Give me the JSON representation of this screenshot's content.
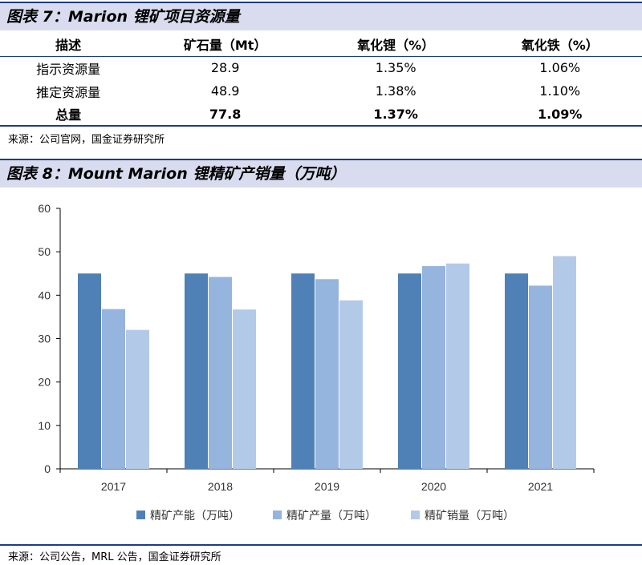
{
  "table7": {
    "title": "图表 7：Marion 锂矿项目资源量",
    "headers": [
      "描述",
      "矿石量（Mt）",
      "氧化锂（%）",
      "氧化铁（%）"
    ],
    "rows": [
      [
        "指示资源量",
        "28.9",
        "1.35%",
        "1.06%"
      ],
      [
        "推定资源量",
        "48.9",
        "1.38%",
        "1.10%"
      ],
      [
        "总量",
        "77.8",
        "1.37%",
        "1.09%"
      ]
    ],
    "source": "来源：公司官网，国金证券研究所"
  },
  "chart8": {
    "title": "图表 8：Mount Marion 锂精矿产销量（万吨）",
    "source": "来源：公司公告，MRL 公告，国金证券研究所"
  },
  "chart_data": {
    "type": "bar",
    "title": "图表 8：Mount Marion 锂精矿产销量（万吨）",
    "categories": [
      "2017",
      "2018",
      "2019",
      "2020",
      "2021"
    ],
    "series": [
      {
        "name": "精矿产能（万吨）",
        "values": [
          45,
          45,
          45,
          45,
          45
        ],
        "color": "#4f81b7"
      },
      {
        "name": "精矿产量（万吨）",
        "values": [
          36.8,
          44.2,
          43.7,
          46.7,
          42.2
        ],
        "color": "#95b4de"
      },
      {
        "name": "精矿销量（万吨）",
        "values": [
          32,
          36.7,
          38.8,
          47.3,
          49.0
        ],
        "color": "#b3c9e8"
      }
    ],
    "ylim": [
      0,
      60
    ],
    "yticks": [
      0,
      10,
      20,
      30,
      40,
      50,
      60
    ],
    "xlabel": "",
    "ylabel": "",
    "grid": false,
    "legend": "bottom"
  }
}
